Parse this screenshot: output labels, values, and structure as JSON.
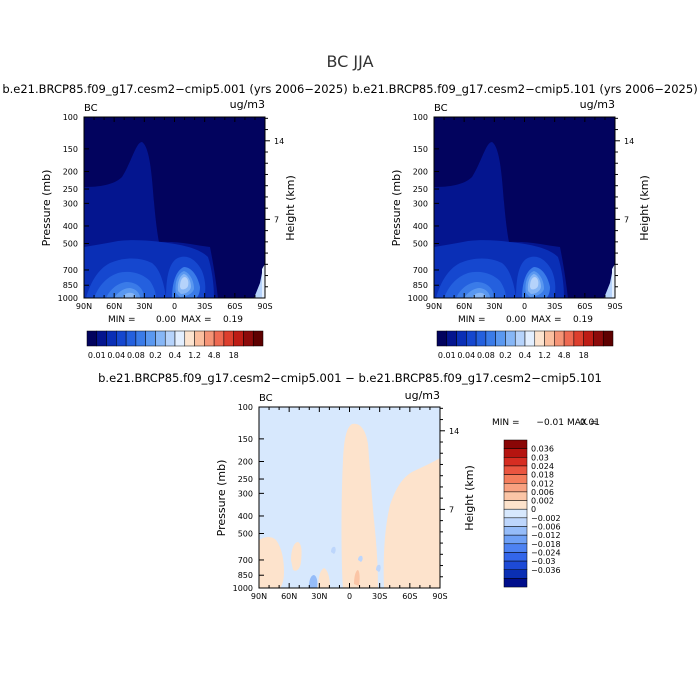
{
  "figure": {
    "title": "BC JJA",
    "diff_title": "b.e21.BRCP85.f09_g17.cesm2−cmip5.001 − b.e21.BRCP85.f09_g17.cesm2−cmip5.101"
  },
  "colors": {
    "abs_palette": [
      "#02035e",
      "#04158f",
      "#0a2fb6",
      "#1547cf",
      "#2460de",
      "#3a7be8",
      "#5a98f0",
      "#86b6f6",
      "#b6d3fb",
      "#e3efff",
      "#fde4cf",
      "#fbbf9f",
      "#f59476",
      "#ee6a52",
      "#dc3f2e",
      "#bd1c15",
      "#8c0a0a",
      "#5e0000"
    ],
    "diff_palette": [
      "#000e8c",
      "#0a2fb4",
      "#1d4ad6",
      "#3366ea",
      "#4d82f2",
      "#6ea0f6",
      "#95bcf9",
      "#bdd6fc",
      "#d7e8fd",
      "#fde3cc",
      "#fbc5a6",
      "#f8a180",
      "#f47d5c",
      "#ea5540",
      "#d62d22",
      "#b51410",
      "#8a0606"
    ]
  },
  "chart_data": [
    {
      "type": "heatmap",
      "title": "b.e21.BRCP85.f09_g17.cesm2−cmip5.001 (yrs 2006−2025)",
      "label_left": "BC",
      "label_right": "ug/m3",
      "ylabel": "Pressure (mb)",
      "ylabel_right": "Height (km)",
      "x_ticks": [
        "90N",
        "60N",
        "30N",
        "0",
        "30S",
        "60S",
        "90S"
      ],
      "y_ticks": [
        "100",
        "150",
        "200",
        "250",
        "300",
        "400",
        "500",
        "700",
        "850",
        "1000"
      ],
      "y_right_ticks": [
        "14",
        "7"
      ],
      "xlim": [
        90,
        -90
      ],
      "ylim": [
        1000,
        100
      ],
      "y_scale": "log",
      "min_label": "MIN =",
      "min_value": "0.00",
      "max_label": "MAX =",
      "max_value": "0.19",
      "colorbar_labels": [
        "0.01",
        "0.04",
        "0.08",
        "0.2",
        "0.4",
        "1.2",
        "4.8",
        "18"
      ]
    },
    {
      "type": "heatmap",
      "title": "b.e21.BRCP85.f09_g17.cesm2−cmip5.101 (yrs 2006−2025)",
      "label_left": "BC",
      "label_right": "ug/m3",
      "ylabel": "Pressure (mb)",
      "ylabel_right": "Height (km)",
      "x_ticks": [
        "90N",
        "60N",
        "30N",
        "0",
        "30S",
        "60S",
        "90S"
      ],
      "y_ticks": [
        "100",
        "150",
        "200",
        "250",
        "300",
        "400",
        "500",
        "700",
        "850",
        "1000"
      ],
      "y_right_ticks": [
        "14",
        "7"
      ],
      "xlim": [
        90,
        -90
      ],
      "ylim": [
        1000,
        100
      ],
      "y_scale": "log",
      "min_label": "MIN =",
      "min_value": "0.00",
      "max_label": "MAX =",
      "max_value": "0.19",
      "colorbar_labels": [
        "0.01",
        "0.04",
        "0.08",
        "0.2",
        "0.4",
        "1.2",
        "4.8",
        "18"
      ]
    },
    {
      "type": "heatmap",
      "title": "",
      "label_left": "BC",
      "label_right": "ug/m3",
      "ylabel": "Pressure (mb)",
      "ylabel_right": "Height (km)",
      "x_ticks": [
        "90N",
        "60N",
        "30N",
        "0",
        "30S",
        "60S",
        "90S"
      ],
      "y_ticks": [
        "100",
        "150",
        "200",
        "250",
        "300",
        "400",
        "500",
        "700",
        "850",
        "1000"
      ],
      "y_right_ticks": [
        "14",
        "7"
      ],
      "xlim": [
        90,
        -90
      ],
      "ylim": [
        1000,
        100
      ],
      "y_scale": "log",
      "min_label": "MIN =",
      "min_value": "−0.01",
      "max_label": "MAX =",
      "max_value": "0.01",
      "colorbar_labels": [
        "0.036",
        "0.03",
        "0.024",
        "0.018",
        "0.012",
        "0.006",
        "0.002",
        "0",
        "−0.002",
        "−0.006",
        "−0.012",
        "−0.018",
        "−0.024",
        "−0.03",
        "−0.036"
      ]
    }
  ]
}
